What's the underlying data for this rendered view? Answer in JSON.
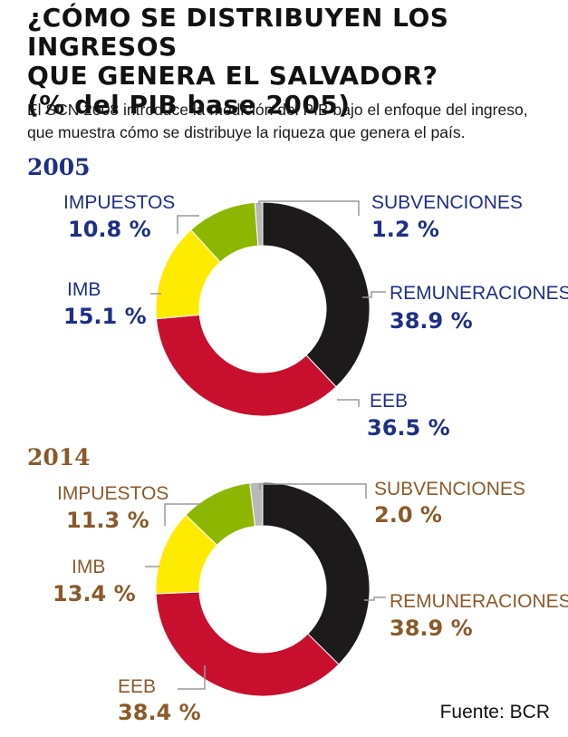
{
  "title_line1": "¿CÓMO SE DISTRIBUYEN LOS INGRESOS",
  "title_line2": "QUE GENERA EL SALVADOR?",
  "title_line3": "(% del PIB base 2005)",
  "subtitle_line1": "El SCN 2008 introduce la medición del PIB bajo el enfoque del ingreso,",
  "subtitle_line2": "que muestra cómo se distribuye la riqueza que genera el país.",
  "source": "Fuente: BCR",
  "colors": {
    "remuneraciones": "#1c1a1b",
    "eeb": "#c8102e",
    "imb": "#ffea00",
    "impuestos": "#8db600",
    "subvenciones": "#b8b8b8",
    "label_2005": "#1f2f86",
    "label_2014": "#8a5a2c"
  },
  "chart_data": [
    {
      "type": "pie",
      "title": "2005",
      "series": [
        {
          "name": "REMUNERACIONES",
          "value": 38.9,
          "label": "38.9 %"
        },
        {
          "name": "EEB",
          "value": 36.5,
          "label": "36.5 %"
        },
        {
          "name": "IMB",
          "value": 15.1,
          "label": "15.1 %"
        },
        {
          "name": "IMPUESTOS",
          "value": 10.8,
          "label": "10.8 %"
        },
        {
          "name": "SUBVENCIONES",
          "value": 1.2,
          "label": "1.2 %"
        }
      ]
    },
    {
      "type": "pie",
      "title": "2014",
      "series": [
        {
          "name": "REMUNERACIONES",
          "value": 38.9,
          "label": "38.9 %"
        },
        {
          "name": "EEB",
          "value": 38.4,
          "label": "38.4 %"
        },
        {
          "name": "IMB",
          "value": 13.4,
          "label": "13.4 %"
        },
        {
          "name": "IMPUESTOS",
          "value": 11.3,
          "label": "11.3 %"
        },
        {
          "name": "SUBVENCIONES",
          "value": 2.0,
          "label": "2.0 %"
        }
      ]
    }
  ]
}
